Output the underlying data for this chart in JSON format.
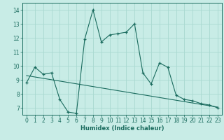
{
  "title": "",
  "xlabel": "Humidex (Indice chaleur)",
  "ylabel": "",
  "bg_color": "#c8ece6",
  "line_color": "#1a6b5e",
  "grid_color": "#a8d8d0",
  "xlim": [
    -0.5,
    23.5
  ],
  "ylim": [
    6.5,
    14.5
  ],
  "yticks": [
    7,
    8,
    9,
    10,
    11,
    12,
    13,
    14
  ],
  "xticks": [
    0,
    1,
    2,
    3,
    4,
    5,
    6,
    7,
    8,
    9,
    10,
    11,
    12,
    13,
    14,
    15,
    16,
    17,
    18,
    19,
    20,
    21,
    22,
    23
  ],
  "series1_x": [
    0,
    1,
    2,
    3,
    4,
    5,
    6,
    7,
    8,
    9,
    10,
    11,
    12,
    13,
    14,
    15,
    16,
    17,
    18,
    19,
    20,
    21,
    22,
    23
  ],
  "series1_y": [
    8.8,
    9.9,
    9.4,
    9.5,
    7.6,
    6.7,
    6.6,
    11.9,
    14.0,
    11.7,
    12.2,
    12.3,
    12.4,
    13.0,
    9.5,
    8.7,
    10.2,
    9.9,
    7.9,
    7.6,
    7.5,
    7.3,
    7.2,
    7.0
  ],
  "series2_x": [
    0,
    23
  ],
  "series2_y": [
    9.3,
    7.05
  ]
}
